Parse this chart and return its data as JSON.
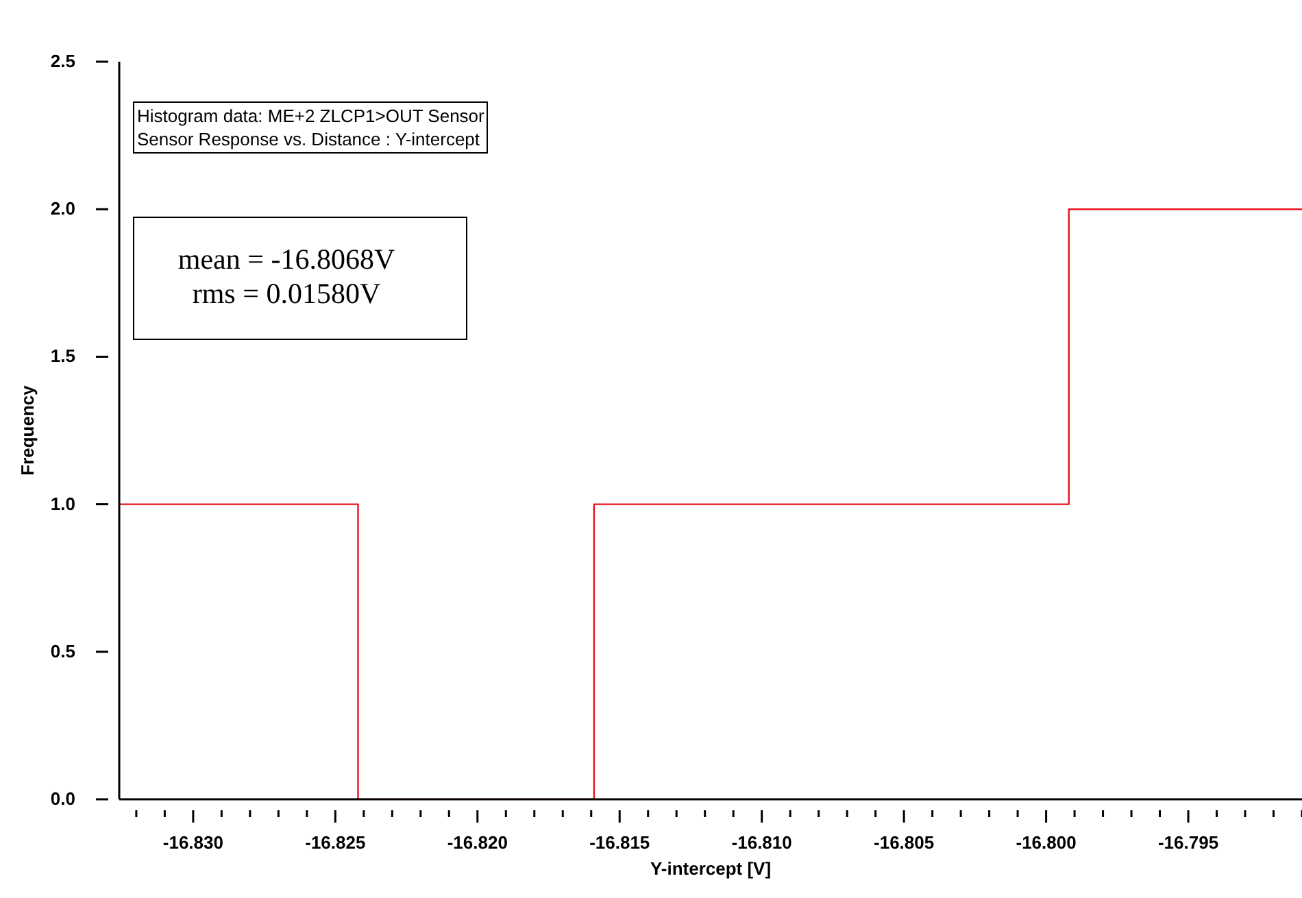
{
  "chart_data": {
    "type": "histogram",
    "bins": [
      -16.8326,
      -16.8242,
      -16.8159,
      -16.8075,
      -16.7992,
      -16.7908
    ],
    "values": [
      1,
      0,
      1,
      1,
      2
    ],
    "color": "#e8141c",
    "xlabel": "Y-intercept [V]",
    "ylabel": "Frequency",
    "xlim": [
      -16.8326,
      -16.791
    ],
    "xticks": [
      {
        "value": -16.832,
        "label": null
      },
      {
        "value": -16.831,
        "label": null
      },
      {
        "value": -16.83,
        "label": "-16.830"
      },
      {
        "value": -16.829,
        "label": null
      },
      {
        "value": -16.828,
        "label": null
      },
      {
        "value": -16.827,
        "label": null
      },
      {
        "value": -16.826,
        "label": null
      },
      -16.825,
      {
        "value": -16.824,
        "label": null
      },
      {
        "value": -16.823,
        "label": null
      },
      {
        "value": -16.822,
        "label": null
      },
      {
        "value": -16.821,
        "label": null
      },
      {
        "value": -16.82,
        "label": "-16.820"
      },
      {
        "value": -16.819,
        "label": null
      },
      {
        "value": -16.818,
        "label": null
      },
      {
        "value": -16.817,
        "label": null
      },
      {
        "value": -16.816,
        "label": null
      },
      -16.815,
      {
        "value": -16.814,
        "label": null
      },
      {
        "value": -16.813,
        "label": null
      },
      {
        "value": -16.812,
        "label": null
      },
      {
        "value": -16.811,
        "label": null
      },
      {
        "value": -16.81,
        "label": "-16.810"
      },
      {
        "value": -16.809,
        "label": null
      },
      {
        "value": -16.808,
        "label": null
      },
      {
        "value": -16.807,
        "label": null
      },
      {
        "value": -16.806,
        "label": null
      },
      -16.805,
      {
        "value": -16.804,
        "label": null
      },
      {
        "value": -16.803,
        "label": null
      },
      {
        "value": -16.802,
        "label": null
      },
      {
        "value": -16.801,
        "label": null
      },
      {
        "value": -16.8,
        "label": "-16.800"
      },
      {
        "value": -16.799,
        "label": null
      },
      {
        "value": -16.798,
        "label": null
      },
      {
        "value": -16.797,
        "label": null
      },
      {
        "value": -16.796,
        "label": null
      },
      -16.795,
      {
        "value": -16.794,
        "label": null
      },
      {
        "value": -16.793,
        "label": null
      },
      {
        "value": -16.792,
        "label": null
      },
      {
        "value": -16.791,
        "label": null
      }
    ],
    "ylim": [
      0,
      2.5
    ],
    "yticks": [
      {
        "value": 0,
        "label": "0.0"
      },
      {
        "value": 0.5,
        "label": "0.5"
      },
      {
        "value": 1,
        "label": "1.0"
      },
      {
        "value": 1.5,
        "label": "1.5"
      },
      {
        "value": 2,
        "label": "2.0"
      },
      {
        "value": 2.5,
        "label": "2.5"
      }
    ],
    "grid": false,
    "legend": false,
    "annotations": [
      "Histogram data: ME+2 ZLCP1>OUT Sensor\nSensor Response vs. Distance : Y-intercept",
      "mean = -16.8068V\nrms = 0.01580V"
    ]
  }
}
